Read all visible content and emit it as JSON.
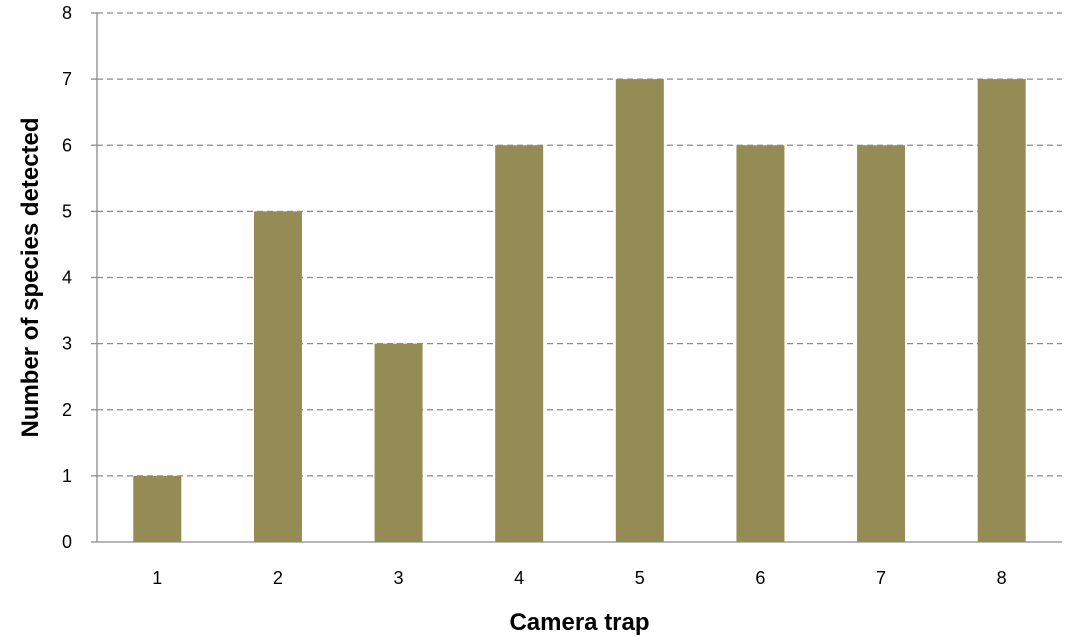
{
  "chart_data": {
    "type": "bar",
    "categories": [
      "1",
      "2",
      "3",
      "4",
      "5",
      "6",
      "7",
      "8"
    ],
    "values": [
      1,
      5,
      3,
      6,
      7,
      6,
      6,
      7
    ],
    "xlabel": "Camera trap",
    "ylabel": "Number of species detected",
    "ylim": [
      0,
      8
    ],
    "yticks": [
      "0",
      "1",
      "2",
      "3",
      "4",
      "5",
      "6",
      "7",
      "8"
    ],
    "grid": true,
    "bar_color": "#958B55",
    "grid_color": "#8C8C8C"
  }
}
